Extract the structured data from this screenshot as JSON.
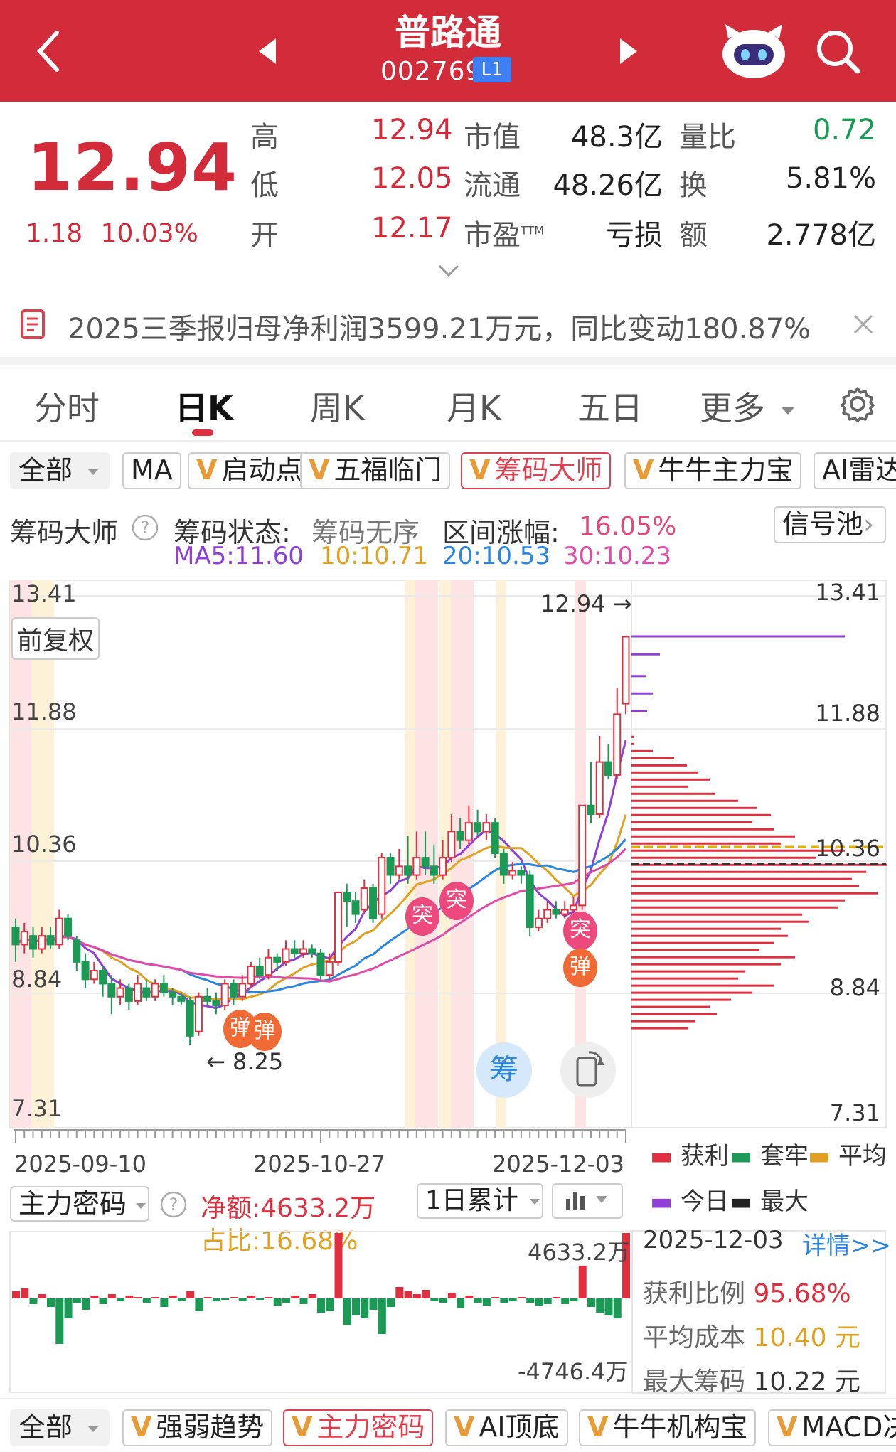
{
  "header": {
    "title": "普路通",
    "code": "002769",
    "level": "L1"
  },
  "quote": {
    "price": "12.94",
    "change": "1.18",
    "change_pct": "10.03%",
    "stats": [
      {
        "label": "高",
        "value": "12.94"
      },
      {
        "label": "低",
        "value": "12.05"
      },
      {
        "label": "开",
        "value": "12.17"
      },
      {
        "label": "市值",
        "value": "48.3亿"
      },
      {
        "label": "流通",
        "value": "48.26亿"
      },
      {
        "label": "市盈",
        "sup": "TTM",
        "value": "亏损"
      },
      {
        "label": "量比",
        "value": "0.72"
      },
      {
        "label": "换",
        "value": "5.81%"
      },
      {
        "label": "额",
        "value": "2.778亿"
      }
    ]
  },
  "notice": {
    "text": "2025三季报归母净利润3599.21万元，同比变动180.87%"
  },
  "tabs": [
    "分时",
    "日K",
    "周K",
    "月K",
    "五日",
    "更多"
  ],
  "active_tab": "日K",
  "indicator_bar": {
    "filter": "全部",
    "items": [
      "MA",
      "启动点",
      "五福临门",
      "筹码大师",
      "牛牛主力宝",
      "AI雷达"
    ],
    "selected": "筹码大师"
  },
  "chip_header": {
    "name": "筹码大师",
    "status_label": "筹码状态:",
    "status_value": "筹码无序",
    "range_label": "区间涨幅:",
    "range_value": "16.05%",
    "signal_pool": "信号池"
  },
  "ma_legend": [
    {
      "text": "MA5:11.60",
      "color": "#8e3fd6"
    },
    {
      "text": "10:10.71",
      "color": "#e0a020"
    },
    {
      "text": "20:10.53",
      "color": "#2a86e0"
    },
    {
      "text": "30:10.23",
      "color": "#e04aa8"
    }
  ],
  "kline": {
    "y_axis_left": [
      "13.41",
      "11.88",
      "10.36",
      "8.84",
      "7.31"
    ],
    "y_axis_right": [
      "13.41",
      "11.88",
      "10.36",
      "8.84",
      "7.31"
    ],
    "adjust_label": "前复权",
    "high_label": "12.94 →",
    "low_label": "← 8.25",
    "dates": [
      "2025-09-10",
      "2025-10-27",
      "2025-12-03"
    ],
    "chip_button": "筹",
    "markers": [
      {
        "text": "弹"
      },
      {
        "text": "弹"
      },
      {
        "text": "突"
      },
      {
        "text": "突"
      },
      {
        "text": "突"
      },
      {
        "text": "弹"
      }
    ],
    "legend": [
      {
        "text": "获利",
        "color": "#e03040"
      },
      {
        "text": "套牢",
        "color": "#1a9a55"
      },
      {
        "text": "平均",
        "color": "#e0a020"
      },
      {
        "text": "今日",
        "color": "#8e3fd6"
      },
      {
        "text": "最大",
        "color": "#222222"
      }
    ]
  },
  "main_force": {
    "selector": "主力密码",
    "net_label": "净额:4633.2万",
    "ratio_label": "占比:16.68%",
    "period": "1日累计",
    "max_label": "4633.2万",
    "min_label": "-4746.4万"
  },
  "chip_info": {
    "date": "2025-12-03",
    "detail": "详情>>",
    "profit_label": "获利比例",
    "profit_value": "95.68%",
    "avg_label": "平均成本",
    "avg_value": "10.40 元",
    "max_label": "最大筹码",
    "max_value": "10.22 元"
  },
  "bottom_bar": {
    "filter": "全部",
    "items": [
      "强弱趋势",
      "主力密码",
      "AI顶底",
      "牛牛机构宝",
      "MACD决策"
    ],
    "selected": "主力密码"
  },
  "colors": {
    "brand_red": "#d22b3a",
    "up": "#e03040",
    "down": "#1a9a55"
  }
}
